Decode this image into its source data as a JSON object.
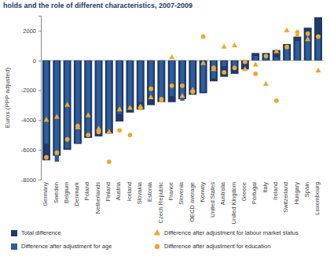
{
  "chart_data": {
    "type": "bar",
    "title": "holds and the role of different characteristics, 2007-2009",
    "y_label": "Euros (PPP adjusted)",
    "categories": [
      "Germany",
      "Sweden",
      "Belgium",
      "Denmark",
      "Poland",
      "Netherlands",
      "Finland",
      "Austria",
      "Iceland",
      "Slovakia",
      "Estonia",
      "Czech Republic",
      "France",
      "Slovenia",
      "OECD average",
      "Norway",
      "United States",
      "Australia",
      "United Kingdom",
      "Greece",
      "Portugal",
      "Italy",
      "Ireland",
      "Switzerland",
      "Hungary",
      "Spain",
      "Luxembourg"
    ],
    "series": [
      {
        "name": "Total difference",
        "type": "bar",
        "color": "#1c3a6b",
        "values": [
          -6700,
          -6400,
          -6000,
          -5600,
          -5200,
          -5100,
          -4900,
          -4100,
          -3500,
          -3300,
          -3000,
          -2800,
          -2800,
          -2600,
          -2300,
          -2200,
          -1400,
          -1100,
          -900,
          -600,
          500,
          500,
          700,
          1100,
          1600,
          2200,
          2900
        ]
      },
      {
        "name": "Difference after adjustment for age",
        "type": "bar",
        "color": "#2f5d99",
        "values": [
          -5600,
          -6800,
          -5900,
          -5600,
          -5100,
          -4900,
          -4700,
          -3600,
          -3300,
          -2800,
          -2600,
          -2600,
          -2400,
          -2700,
          -2100,
          -2100,
          -1200,
          -400,
          -400,
          -200,
          300,
          200,
          200,
          800,
          1300,
          1700,
          1700
        ]
      },
      {
        "name": "Difference after adjustment for labour market status",
        "type": "scatter",
        "marker": "triangle",
        "color": "#f0a830",
        "values": [
          -4000,
          -3800,
          -3000,
          -4500,
          -3700,
          -4600,
          -4800,
          -3300,
          -3200,
          -3100,
          -2500,
          -2700,
          200,
          -2400,
          -2000,
          -200,
          -600,
          900,
          1000,
          -600,
          -300,
          -1600,
          600,
          2000,
          1700,
          1400,
          -700
        ]
      },
      {
        "name": "Difference after adjustment for education",
        "type": "scatter",
        "marker": "circle",
        "color": "#f0a830",
        "values": [
          -6500,
          -6200,
          -5300,
          -4400,
          -5000,
          -4800,
          -6800,
          -4700,
          -5000,
          -3200,
          -1900,
          -2600,
          -1700,
          -1700,
          -2100,
          1600,
          -500,
          -800,
          -500,
          -100,
          -900,
          300,
          -2700,
          900,
          1900,
          1800,
          1600
        ]
      }
    ],
    "ylim": [
      -8000,
      3000
    ],
    "yticks": [
      -8000,
      -6000,
      -4000,
      -2000,
      0,
      2000
    ],
    "grid": false
  }
}
